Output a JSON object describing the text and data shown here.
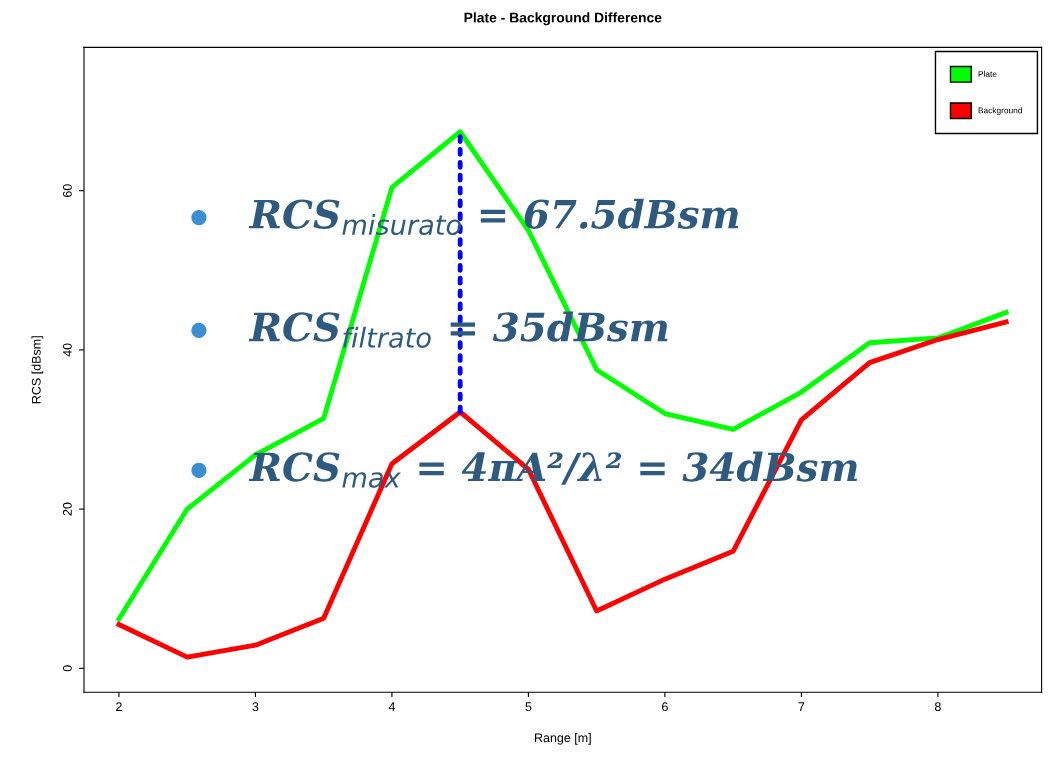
{
  "chart_data": {
    "type": "line",
    "title": "Plate - Background Difference",
    "xlabel": "Range [m]",
    "ylabel": "RCS [dBsm]",
    "x": [
      2,
      2.5,
      3,
      3.5,
      4,
      4.5,
      5,
      5.5,
      6,
      6.5,
      7,
      7.5,
      8,
      8.5
    ],
    "series": [
      {
        "name": "Plate",
        "color": "#00ff00",
        "values": [
          6.2,
          20,
          26.8,
          31.4,
          60.4,
          67.4,
          55,
          37.5,
          32,
          30,
          34.7,
          40.9,
          41.5,
          44.7
        ]
      },
      {
        "name": "Background",
        "color": "#ff0000",
        "values": [
          5.5,
          1.4,
          2.9,
          6.3,
          25.7,
          32.2,
          25,
          7.2,
          11.2,
          14.7,
          31.2,
          38.4,
          41.3,
          43.5
        ]
      },
      {
        "color": "#0000ff",
        "x": [
          4.5,
          4.5
        ],
        "values": [
          32.2,
          67.4
        ],
        "line_style": "dotted"
      }
    ],
    "xlim": [
      1.744,
      8.76
    ],
    "ylim": [
      -3,
      78
    ],
    "xticks": [
      2,
      3,
      4,
      5,
      6,
      7,
      8
    ],
    "yticks": [
      0,
      20,
      40,
      60
    ],
    "grid": false,
    "legend": "top right",
    "marker": "none",
    "line_style": "solid",
    "annotations": [
      "RCS$_{misurato}$ = 67.5dBsm",
      "RCS$_{filtrato}$ = 35dBsm",
      "RCS$_{max}$ = 4πA²/λ² = 34dBsm"
    ]
  }
}
